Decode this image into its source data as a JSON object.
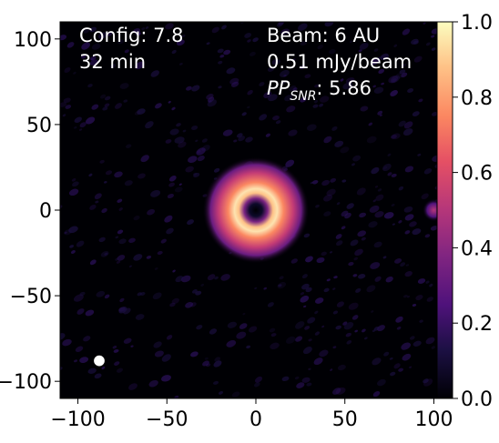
{
  "chart_data": {
    "type": "heatmap",
    "colormap": "magma",
    "xlim": [
      -110,
      110
    ],
    "ylim": [
      -110,
      110
    ],
    "x_ticks": [
      -100,
      -50,
      0,
      50,
      100
    ],
    "y_ticks": [
      100,
      50,
      0,
      -50,
      -100
    ],
    "x_tick_labels": [
      "−100",
      "−50",
      "0",
      "50",
      "100"
    ],
    "y_tick_labels": [
      "100",
      "50",
      "0",
      "−50",
      "−100"
    ],
    "colorbar": {
      "range": [
        0.0,
        1.0
      ],
      "ticks": [
        1.0,
        0.8,
        0.6,
        0.4,
        0.2,
        0.0
      ],
      "tick_labels": [
        "1.0",
        "0.8",
        "0.6",
        "0.4",
        "0.2",
        "0.0"
      ]
    },
    "annotations": {
      "config_line": "Config: 7.8",
      "time_line": "32 min",
      "beam_line": "Beam: 6 AU",
      "noise_line": "0.51 mJy/beam",
      "pp_label": "PP",
      "pp_subscript": "SNR",
      "pp_value": ": 5.86"
    },
    "features": {
      "ring": {
        "center": [
          0,
          0
        ],
        "peak_radius": 10,
        "peak_value": 0.95,
        "outer_extent": 30
      },
      "hole": {
        "center": [
          0,
          0
        ],
        "radius": 5,
        "value": 0.0
      },
      "secondary_source": {
        "center": [
          100,
          0
        ],
        "radius": 4,
        "peak_value": 0.5
      },
      "beam_marker": {
        "center": [
          -88,
          -88
        ],
        "diameter": 6,
        "color": "#ffffff"
      }
    },
    "grid": false
  }
}
